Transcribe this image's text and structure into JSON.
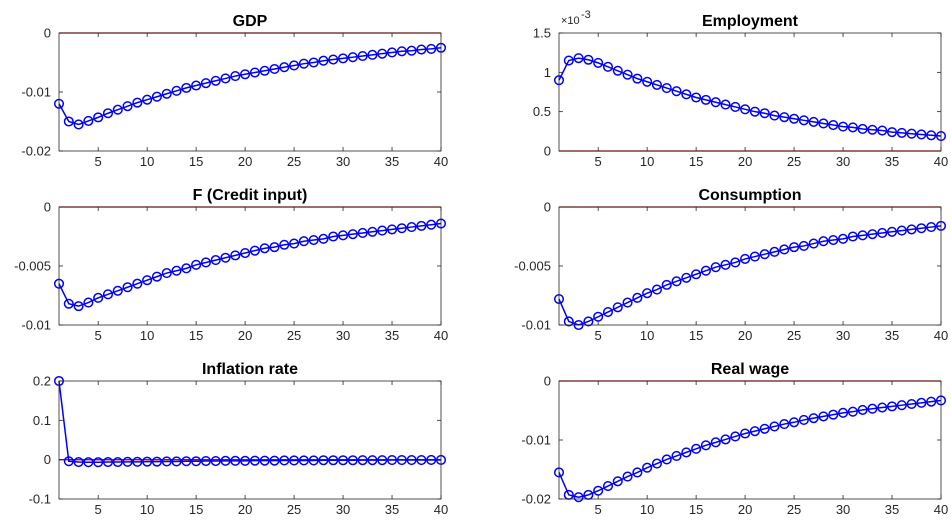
{
  "chart_data": [
    {
      "type": "line",
      "title": "GDP",
      "xlabel": "",
      "ylabel": "",
      "xlim": [
        1,
        40
      ],
      "ylim": [
        -0.02,
        0
      ],
      "xticks": [
        5,
        10,
        15,
        20,
        25,
        30,
        35,
        40
      ],
      "xtick_labels": [
        "5",
        "10",
        "15",
        "20",
        "25",
        "30",
        "35",
        "40"
      ],
      "yticks": [
        0,
        -0.01,
        -0.02
      ],
      "ytick_labels": [
        "0",
        "-0.01",
        "-0.02"
      ],
      "ytick_exponent": "",
      "reference_line": 0,
      "colors": {
        "series": "#0000ff",
        "reference": "#cc0000"
      },
      "grid": false,
      "series": [
        {
          "x": [
            1,
            2,
            3,
            4,
            5,
            6,
            7,
            8,
            9,
            10,
            11,
            12,
            13,
            14,
            15,
            16,
            17,
            18,
            19,
            20,
            21,
            22,
            23,
            24,
            25,
            26,
            27,
            28,
            29,
            30,
            31,
            32,
            33,
            34,
            35,
            36,
            37,
            38,
            39,
            40
          ],
          "values": [
            -0.012,
            -0.015,
            -0.0155,
            -0.0149,
            -0.0143,
            -0.0136,
            -0.013,
            -0.0124,
            -0.0118,
            -0.0113,
            -0.0108,
            -0.0103,
            -0.0098,
            -0.0093,
            -0.0089,
            -0.0085,
            -0.0081,
            -0.0077,
            -0.0073,
            -0.007,
            -0.0067,
            -0.0064,
            -0.0061,
            -0.0058,
            -0.0055,
            -0.0052,
            -0.005,
            -0.0047,
            -0.0045,
            -0.0043,
            -0.0041,
            -0.0039,
            -0.0037,
            -0.0035,
            -0.0033,
            -0.0031,
            -0.003,
            -0.0028,
            -0.0027,
            -0.0025
          ]
        }
      ]
    },
    {
      "type": "line",
      "title": "Employment",
      "xlabel": "",
      "ylabel": "",
      "xlim": [
        1,
        40
      ],
      "ylim": [
        0,
        1.5
      ],
      "xticks": [
        5,
        10,
        15,
        20,
        25,
        30,
        35,
        40
      ],
      "xtick_labels": [
        "5",
        "10",
        "15",
        "20",
        "25",
        "30",
        "35",
        "40"
      ],
      "yticks": [
        1.5,
        1,
        0.5,
        0
      ],
      "ytick_labels": [
        "1.5",
        "1",
        "0.5",
        "0"
      ],
      "ytick_exponent": "×10",
      "ytick_exponent_power": "-3",
      "reference_line": 0,
      "colors": {
        "series": "#0000ff",
        "reference": "#cc0000"
      },
      "grid": false,
      "series": [
        {
          "x": [
            1,
            2,
            3,
            4,
            5,
            6,
            7,
            8,
            9,
            10,
            11,
            12,
            13,
            14,
            15,
            16,
            17,
            18,
            19,
            20,
            21,
            22,
            23,
            24,
            25,
            26,
            27,
            28,
            29,
            30,
            31,
            32,
            33,
            34,
            35,
            36,
            37,
            38,
            39,
            40
          ],
          "values": [
            0.9,
            1.15,
            1.18,
            1.16,
            1.12,
            1.07,
            1.02,
            0.97,
            0.92,
            0.88,
            0.84,
            0.8,
            0.76,
            0.72,
            0.68,
            0.65,
            0.62,
            0.59,
            0.56,
            0.53,
            0.5,
            0.48,
            0.45,
            0.43,
            0.41,
            0.39,
            0.37,
            0.35,
            0.33,
            0.31,
            0.3,
            0.28,
            0.27,
            0.26,
            0.24,
            0.23,
            0.22,
            0.21,
            0.2,
            0.19
          ]
        }
      ]
    },
    {
      "type": "line",
      "title": "F (Credit input)",
      "xlabel": "",
      "ylabel": "",
      "xlim": [
        1,
        40
      ],
      "ylim": [
        -0.01,
        0
      ],
      "xticks": [
        5,
        10,
        15,
        20,
        25,
        30,
        35,
        40
      ],
      "xtick_labels": [
        "5",
        "10",
        "15",
        "20",
        "25",
        "30",
        "35",
        "40"
      ],
      "yticks": [
        0,
        -0.005,
        -0.01
      ],
      "ytick_labels": [
        "0",
        "-0.005",
        "-0.01"
      ],
      "ytick_exponent": "",
      "reference_line": 0,
      "colors": {
        "series": "#0000ff",
        "reference": "#cc0000"
      },
      "grid": false,
      "series": [
        {
          "x": [
            1,
            2,
            3,
            4,
            5,
            6,
            7,
            8,
            9,
            10,
            11,
            12,
            13,
            14,
            15,
            16,
            17,
            18,
            19,
            20,
            21,
            22,
            23,
            24,
            25,
            26,
            27,
            28,
            29,
            30,
            31,
            32,
            33,
            34,
            35,
            36,
            37,
            38,
            39,
            40
          ],
          "values": [
            -0.0065,
            -0.0082,
            -0.0084,
            -0.0081,
            -0.0077,
            -0.0074,
            -0.0071,
            -0.0068,
            -0.0065,
            -0.0062,
            -0.0059,
            -0.0056,
            -0.0054,
            -0.0052,
            -0.0049,
            -0.0047,
            -0.0045,
            -0.0043,
            -0.0041,
            -0.0039,
            -0.0037,
            -0.0035,
            -0.0034,
            -0.0032,
            -0.0031,
            -0.0029,
            -0.0028,
            -0.0027,
            -0.0025,
            -0.0024,
            -0.0023,
            -0.0022,
            -0.0021,
            -0.002,
            -0.0019,
            -0.0018,
            -0.0017,
            -0.0016,
            -0.0015,
            -0.0014
          ]
        }
      ]
    },
    {
      "type": "line",
      "title": "Consumption",
      "xlabel": "",
      "ylabel": "",
      "xlim": [
        1,
        40
      ],
      "ylim": [
        -0.01,
        0
      ],
      "xticks": [
        5,
        10,
        15,
        20,
        25,
        30,
        35,
        40
      ],
      "xtick_labels": [
        "5",
        "10",
        "15",
        "20",
        "25",
        "30",
        "35",
        "40"
      ],
      "yticks": [
        0,
        -0.005,
        -0.01
      ],
      "ytick_labels": [
        "0",
        "-0.005",
        "-0.01"
      ],
      "ytick_exponent": "",
      "reference_line": 0,
      "colors": {
        "series": "#0000ff",
        "reference": "#cc0000"
      },
      "grid": false,
      "series": [
        {
          "x": [
            1,
            2,
            3,
            4,
            5,
            6,
            7,
            8,
            9,
            10,
            11,
            12,
            13,
            14,
            15,
            16,
            17,
            18,
            19,
            20,
            21,
            22,
            23,
            24,
            25,
            26,
            27,
            28,
            29,
            30,
            31,
            32,
            33,
            34,
            35,
            36,
            37,
            38,
            39,
            40
          ],
          "values": [
            -0.0078,
            -0.0097,
            -0.01,
            -0.0097,
            -0.0093,
            -0.0089,
            -0.0085,
            -0.0081,
            -0.0077,
            -0.0073,
            -0.007,
            -0.0066,
            -0.0063,
            -0.006,
            -0.0057,
            -0.0054,
            -0.0051,
            -0.0049,
            -0.0047,
            -0.0044,
            -0.0042,
            -0.004,
            -0.0038,
            -0.0036,
            -0.0034,
            -0.0033,
            -0.0031,
            -0.0029,
            -0.0028,
            -0.0027,
            -0.0025,
            -0.0024,
            -0.0023,
            -0.0022,
            -0.0021,
            -0.002,
            -0.0019,
            -0.0018,
            -0.0017,
            -0.0016
          ]
        }
      ]
    },
    {
      "type": "line",
      "title": "Inflation rate",
      "xlabel": "",
      "ylabel": "",
      "xlim": [
        1,
        40
      ],
      "ylim": [
        -0.1,
        0.2
      ],
      "xticks": [
        5,
        10,
        15,
        20,
        25,
        30,
        35,
        40
      ],
      "xtick_labels": [
        "5",
        "10",
        "15",
        "20",
        "25",
        "30",
        "35",
        "40"
      ],
      "yticks": [
        0.2,
        0.1,
        0,
        -0.1
      ],
      "ytick_labels": [
        "0.2",
        "0.1",
        "0",
        "-0.1"
      ],
      "ytick_exponent": "",
      "reference_line": 0,
      "colors": {
        "series": "#0000ff",
        "reference": "#cc0000"
      },
      "grid": false,
      "series": [
        {
          "x": [
            1,
            2,
            3,
            4,
            5,
            6,
            7,
            8,
            9,
            10,
            11,
            12,
            13,
            14,
            15,
            16,
            17,
            18,
            19,
            20,
            21,
            22,
            23,
            24,
            25,
            26,
            27,
            28,
            29,
            30,
            31,
            32,
            33,
            34,
            35,
            36,
            37,
            38,
            39,
            40
          ],
          "values": [
            0.2,
            -0.004,
            -0.006,
            -0.0065,
            -0.0065,
            -0.006,
            -0.006,
            -0.0055,
            -0.0055,
            -0.005,
            -0.005,
            -0.0045,
            -0.0045,
            -0.004,
            -0.004,
            -0.0035,
            -0.0035,
            -0.003,
            -0.003,
            -0.003,
            -0.0025,
            -0.0025,
            -0.0025,
            -0.002,
            -0.002,
            -0.002,
            -0.002,
            -0.0015,
            -0.0015,
            -0.0015,
            -0.0015,
            -0.0012,
            -0.0012,
            -0.0012,
            -0.001,
            -0.001,
            -0.001,
            -0.001,
            -0.0008,
            -0.0008
          ]
        }
      ]
    },
    {
      "type": "line",
      "title": "Real wage",
      "xlabel": "",
      "ylabel": "",
      "xlim": [
        1,
        40
      ],
      "ylim": [
        -0.02,
        0
      ],
      "xticks": [
        5,
        10,
        15,
        20,
        25,
        30,
        35,
        40
      ],
      "xtick_labels": [
        "5",
        "10",
        "15",
        "20",
        "25",
        "30",
        "35",
        "40"
      ],
      "yticks": [
        0,
        -0.01,
        -0.02
      ],
      "ytick_labels": [
        "0",
        "-0.01",
        "-0.02"
      ],
      "ytick_exponent": "",
      "reference_line": 0,
      "colors": {
        "series": "#0000ff",
        "reference": "#cc0000"
      },
      "grid": false,
      "series": [
        {
          "x": [
            1,
            2,
            3,
            4,
            5,
            6,
            7,
            8,
            9,
            10,
            11,
            12,
            13,
            14,
            15,
            16,
            17,
            18,
            19,
            20,
            21,
            22,
            23,
            24,
            25,
            26,
            27,
            28,
            29,
            30,
            31,
            32,
            33,
            34,
            35,
            36,
            37,
            38,
            39,
            40
          ],
          "values": [
            -0.0155,
            -0.0193,
            -0.0197,
            -0.0193,
            -0.0186,
            -0.0178,
            -0.017,
            -0.0162,
            -0.0155,
            -0.0147,
            -0.014,
            -0.0133,
            -0.0127,
            -0.0121,
            -0.0115,
            -0.0109,
            -0.0104,
            -0.0099,
            -0.0094,
            -0.0089,
            -0.0085,
            -0.0081,
            -0.0077,
            -0.0073,
            -0.007,
            -0.0066,
            -0.0063,
            -0.006,
            -0.0057,
            -0.0054,
            -0.0052,
            -0.0049,
            -0.0047,
            -0.0045,
            -0.0043,
            -0.0041,
            -0.0039,
            -0.0037,
            -0.0035,
            -0.0033
          ]
        }
      ]
    }
  ]
}
